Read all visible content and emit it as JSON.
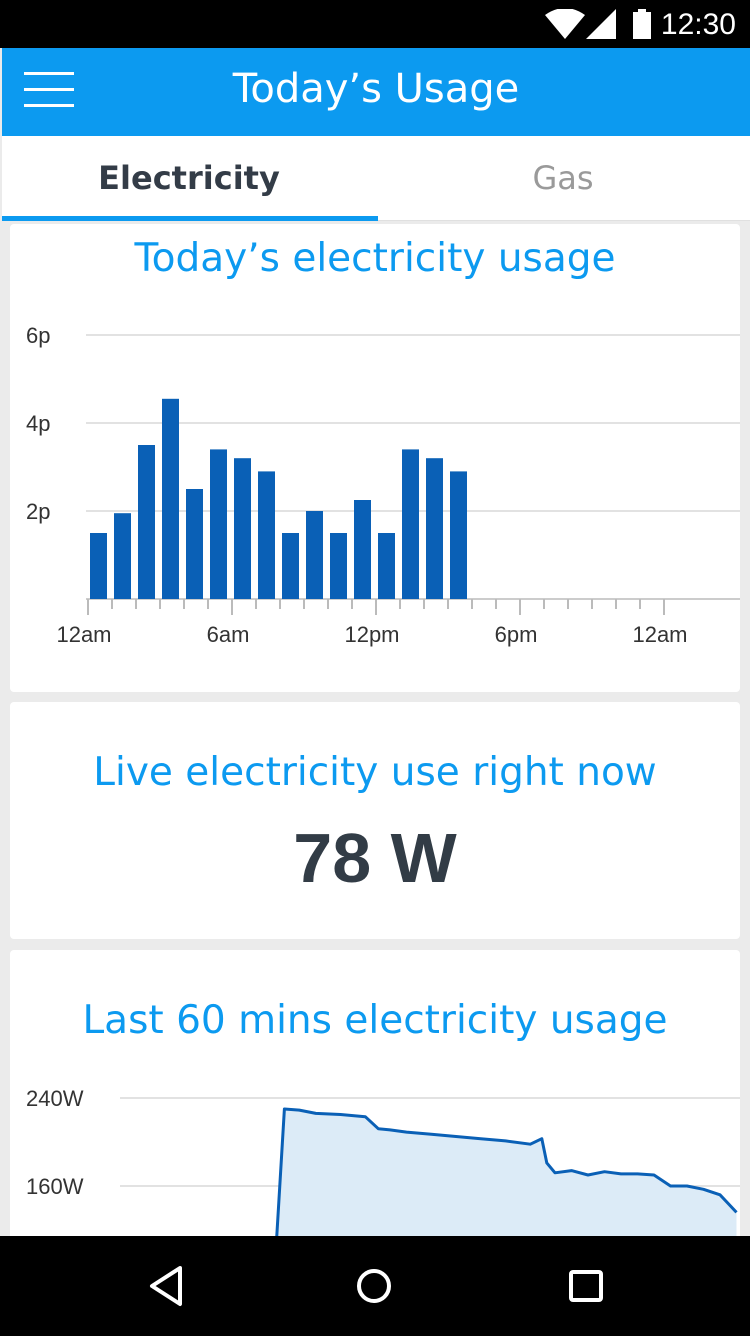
{
  "status_bar": {
    "time": "12:30",
    "icons": [
      "wifi-icon",
      "cell-signal-icon",
      "battery-icon"
    ]
  },
  "app_bar": {
    "title": "Today’s Usage",
    "menu_icon": "hamburger-menu-icon"
  },
  "tabs": [
    {
      "label": "Electricity",
      "active": true
    },
    {
      "label": "Gas",
      "active": false
    }
  ],
  "today_card": {
    "title": "Today’s electricity usage",
    "chart_data": {
      "type": "bar",
      "unit": "p",
      "y_ticks": [
        {
          "value": 2,
          "label": "2p"
        },
        {
          "value": 4,
          "label": "4p"
        },
        {
          "value": 6,
          "label": "6p"
        }
      ],
      "ylim": [
        0,
        6
      ],
      "x_tick_labels": [
        "12am",
        "6am",
        "12pm",
        "6pm",
        "12am"
      ],
      "x_range_hours": [
        0,
        24
      ],
      "values": [
        1.5,
        1.95,
        3.5,
        4.55,
        2.5,
        3.4,
        3.2,
        2.9,
        1.5,
        2.0,
        1.5,
        2.25,
        1.5,
        3.4,
        3.2,
        2.9
      ],
      "grid": true,
      "color": "#0a60b6"
    }
  },
  "live_card": {
    "title": "Live electricity use right now",
    "value": "78 W"
  },
  "last60_card": {
    "title": "Last 60 mins electricity usage",
    "chart_data": {
      "type": "area",
      "unit": "W",
      "y_ticks": [
        {
          "value": 160,
          "label": "160W"
        },
        {
          "value": 240,
          "label": "240W"
        }
      ],
      "ylim_visible": [
        160,
        240
      ],
      "x_minutes": [
        13,
        13.6,
        14.5,
        15.5,
        17,
        18.5,
        19.3,
        20,
        21,
        22.5,
        24,
        25.5,
        27,
        28.5,
        29.2,
        29.5,
        30,
        31,
        32,
        33,
        34,
        35,
        36,
        37,
        38,
        39,
        40,
        40.5,
        41
      ],
      "y_watts": [
        80,
        230,
        229,
        226,
        225,
        223,
        212,
        211,
        209,
        207,
        205,
        203,
        201,
        198,
        203,
        181,
        172,
        174,
        170,
        173,
        171,
        171,
        170,
        160,
        160,
        157,
        152,
        144,
        136
      ],
      "color": "#0a60b6",
      "fill": "#dcebf7"
    }
  },
  "nav_bar": {
    "buttons": [
      "back-icon",
      "home-icon",
      "recents-icon"
    ]
  }
}
